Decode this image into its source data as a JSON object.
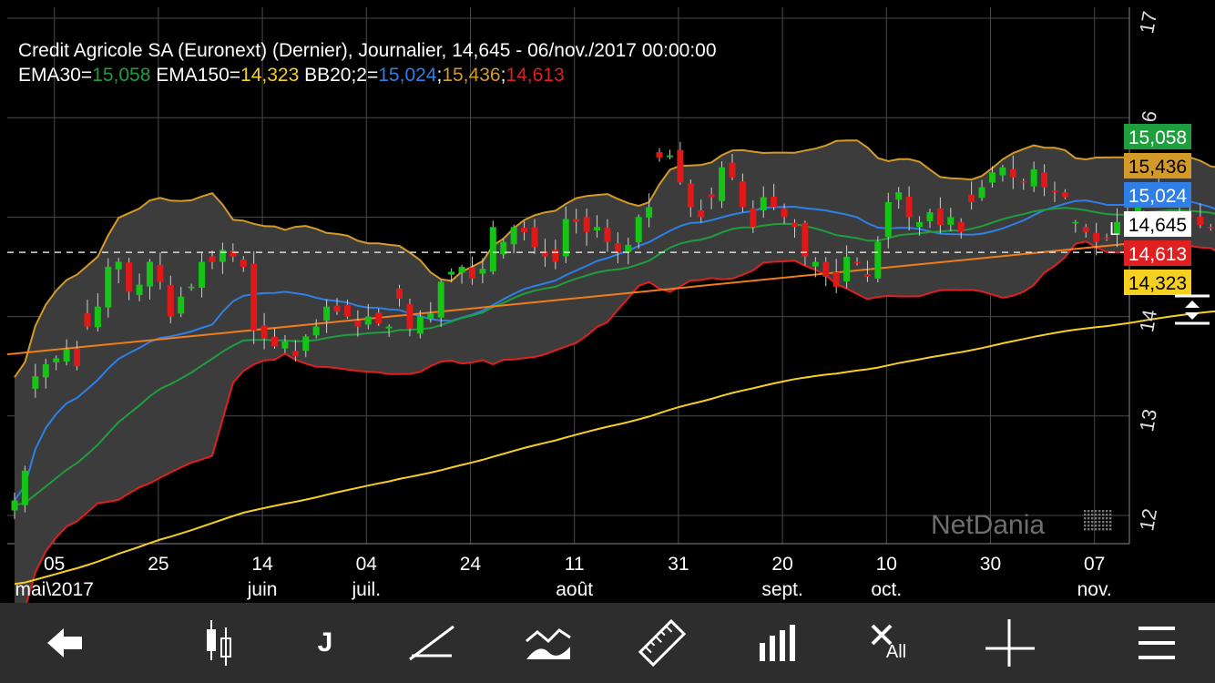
{
  "header": {
    "line1": "Credit Agricole SA (Euronext) (Dernier), Journalier, 14,645 - 06/nov./2017 00:00:00",
    "ema30_label": "EMA30=",
    "ema30_value": "15,058",
    "ema150_label": " EMA150=",
    "ema150_value": "14,323",
    "bb_label": " BB20;2=",
    "bb_mid": "15,024",
    "sep1": ";",
    "bb_upper": "15,436",
    "sep2": ";",
    "bb_lower": "14,613"
  },
  "watermark": "NetDania",
  "last_label": "L",
  "colors": {
    "ema30": "#1e9e3c",
    "ema150": "#f5d020",
    "bb_mid": "#2f7fe6",
    "bb_upper": "#d39a2a",
    "bb_lower": "#e02020",
    "trend": "#f07d1a",
    "up": "#16c416",
    "down": "#e01818",
    "band_fill": "#3c3c3c"
  },
  "toolbar": {
    "back_icon": "back-arrow-icon",
    "chart_type_icon": "candlestick-icon",
    "period_label": "J",
    "draw_line_icon": "trendline-icon",
    "indicators_icon": "indicators-icon",
    "measure_icon": "ruler-icon",
    "volume_icon": "volume-bars-icon",
    "delete_all_label": "All",
    "crosshair_icon": "crosshair-icon",
    "menu_icon": "hamburger-menu-icon"
  },
  "chart_data": {
    "type": "candlestick",
    "title": "Credit Agricole SA (Euronext) (Dernier), Journalier, 14,645 - 06/nov./2017 00:00:00",
    "y_axis": {
      "ticks": [
        12,
        13,
        14,
        15,
        16,
        17
      ],
      "ylim": [
        11.85,
        17.2
      ],
      "position": "right"
    },
    "x_axis": {
      "ticks": [
        {
          "day": "05",
          "month": "mai\\2017",
          "i": 4
        },
        {
          "day": "25",
          "month": "",
          "i": 14
        },
        {
          "day": "14",
          "month": "juin",
          "i": 24
        },
        {
          "day": "04",
          "month": "juil.",
          "i": 34
        },
        {
          "day": "24",
          "month": "",
          "i": 44
        },
        {
          "day": "11",
          "month": "août",
          "i": 54
        },
        {
          "day": "31",
          "month": "",
          "i": 64
        },
        {
          "day": "20",
          "month": "sept.",
          "i": 74
        },
        {
          "day": "10",
          "month": "oct.",
          "i": 84
        },
        {
          "day": "30",
          "month": "",
          "i": 94
        },
        {
          "day": "07",
          "month": "nov.",
          "i": 104
        }
      ]
    },
    "last_price": 14.645,
    "price_tags": [
      {
        "label": "15,058",
        "value": 15.058,
        "series": "ema30"
      },
      {
        "label": "15,436",
        "value": 15.436,
        "series": "bb_upper"
      },
      {
        "label": "15,024",
        "value": 15.024,
        "series": "bb_mid"
      },
      {
        "label": "14,645",
        "value": 14.645,
        "series": "last"
      },
      {
        "label": "14,613",
        "value": 14.613,
        "series": "bb_lower"
      },
      {
        "label": "14,323",
        "value": 14.323,
        "series": "ema150"
      }
    ],
    "trendline": [
      [
        0,
        13.62
      ],
      [
        108,
        14.73
      ]
    ],
    "closes": [
      12.15,
      12.45,
      13.4,
      13.52,
      13.58,
      13.67,
      13.5,
      13.9,
      14.1,
      14.5,
      14.55,
      14.25,
      14.32,
      14.55,
      14.35,
      14.0,
      14.2,
      14.3,
      14.55,
      14.55,
      14.67,
      14.6,
      14.5,
      13.86,
      13.78,
      13.7,
      13.75,
      13.6,
      13.8,
      13.9,
      14.1,
      14.05,
      14.0,
      13.9,
      14.0,
      13.93,
      13.9,
      14.18,
      13.88,
      14.0,
      14.03,
      14.35,
      14.45,
      14.5,
      14.38,
      14.48,
      14.9,
      14.75,
      14.9,
      14.85,
      14.7,
      14.6,
      14.55,
      14.98,
      14.95,
      14.85,
      14.9,
      14.75,
      14.65,
      14.72,
      15.0,
      15.1,
      15.6,
      15.62,
      15.35,
      15.1,
      15.0,
      15.2,
      15.5,
      15.4,
      15.1,
      14.9,
      15.2,
      15.1,
      15.0,
      14.9,
      14.6,
      14.55,
      14.4,
      14.3,
      14.6,
      14.55,
      14.4,
      14.75,
      15.15,
      15.25,
      15.0,
      14.95,
      15.05,
      14.92,
      15.0,
      14.85,
      15.15,
      15.3,
      15.45,
      15.5,
      15.4,
      15.35,
      15.48,
      15.3,
      15.25,
      15.2,
      14.95,
      14.85,
      14.75,
      14.78,
      14.95,
      15.02,
      15.2,
      15.25,
      15.18,
      15.22,
      15.05,
      15.0,
      14.92,
      14.9,
      14.645
    ]
  }
}
